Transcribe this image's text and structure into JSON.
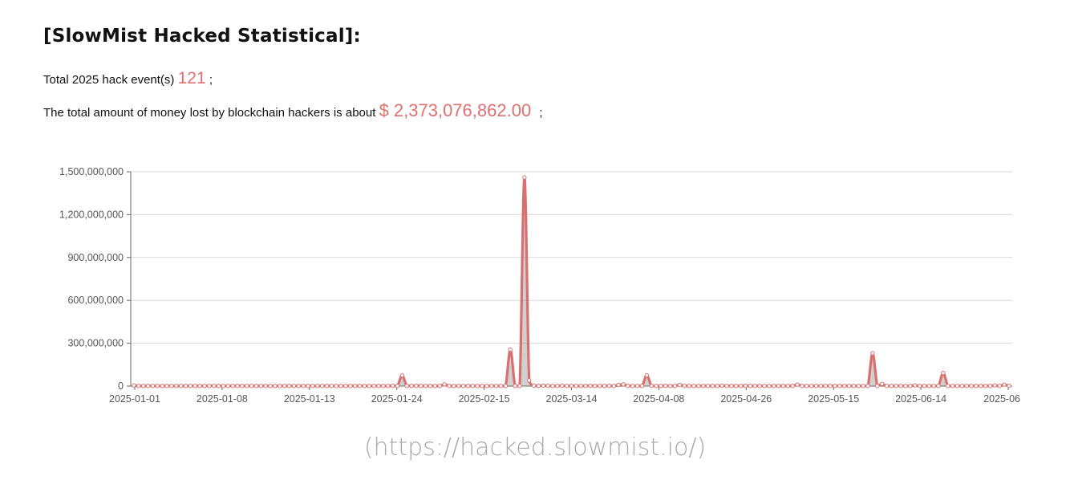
{
  "header": {
    "title": "[SlowMist Hacked Statistical]:",
    "events_prefix": "Total 2025 hack event(s)",
    "events_count": "121",
    "events_suffix": ";",
    "loss_prefix": "The total amount of money lost by blockchain hackers is about",
    "loss_amount": "$ 2,373,076,862.00",
    "loss_suffix": ";"
  },
  "source": "(https://hacked.slowmist.io/)",
  "colors": {
    "accent": "#e07070",
    "line": "#d9706f",
    "grid": "#d9d9d9",
    "text": "#555555"
  },
  "chart_data": {
    "type": "line",
    "title": "",
    "xlabel": "",
    "ylabel": "",
    "ylim": [
      0,
      1500000000
    ],
    "y_ticks": [
      "0",
      "300,000,000",
      "600,000,000",
      "900,000,000",
      "1,200,000,000",
      "1,500,000,000"
    ],
    "x_tick_labels": [
      "2025-01-01",
      "2025-01-08",
      "2025-01-13",
      "2025-01-24",
      "2025-02-15",
      "2025-03-14",
      "2025-04-08",
      "2025-04-26",
      "2025-05-15",
      "2025-06-14",
      "2025-06"
    ],
    "grid": true,
    "legend": "none",
    "values": [
      5000000,
      1000000,
      1000000,
      1000000,
      1000000,
      1000000,
      1000000,
      1000000,
      1000000,
      1000000,
      1000000,
      1000000,
      1000000,
      1000000,
      1000000,
      1000000,
      1000000,
      1000000,
      1000000,
      1000000,
      1000000,
      1000000,
      1000000,
      1000000,
      1000000,
      1000000,
      1000000,
      1000000,
      1000000,
      1000000,
      1000000,
      1000000,
      1000000,
      1000000,
      1000000,
      1000000,
      1000000,
      1000000,
      1000000,
      1000000,
      1000000,
      1000000,
      1000000,
      1000000,
      1000000,
      1000000,
      1000000,
      1000000,
      1000000,
      1000000,
      1000000,
      1000000,
      1000000,
      1000000,
      1000000,
      2000000,
      1000000,
      75000000,
      1000000,
      1000000,
      2000000,
      1000000,
      1000000,
      1000000,
      1000000,
      1000000,
      12000000,
      1000000,
      1000000,
      1000000,
      1000000,
      1000000,
      1000000,
      1000000,
      1000000,
      1000000,
      1000000,
      1000000,
      1000000,
      1000000,
      255000000,
      1000000,
      1000000,
      1460000000,
      40000000,
      3000000,
      2000000,
      3000000,
      2000000,
      1000000,
      1000000,
      3000000,
      1000000,
      2000000,
      1000000,
      1000000,
      1000000,
      2000000,
      1000000,
      1000000,
      1000000,
      2000000,
      1000000,
      8000000,
      12000000,
      2000000,
      1000000,
      1000000,
      1000000,
      75000000,
      2000000,
      1000000,
      1000000,
      2000000,
      1000000,
      1000000,
      8000000,
      1000000,
      1000000,
      1000000,
      1000000,
      1000000,
      1000000,
      1000000,
      1000000,
      3000000,
      1000000,
      1000000,
      1000000,
      1000000,
      2000000,
      1000000,
      1000000,
      1000000,
      1000000,
      1000000,
      1000000,
      1000000,
      1000000,
      1000000,
      1000000,
      10000000,
      1000000,
      1000000,
      1000000,
      1000000,
      1000000,
      1000000,
      1000000,
      1000000,
      1000000,
      1000000,
      1000000,
      1000000,
      1000000,
      1000000,
      1000000,
      230000000,
      1000000,
      15000000,
      1000000,
      1000000,
      1000000,
      1000000,
      1000000,
      1000000,
      5000000,
      1000000,
      1000000,
      1000000,
      1000000,
      1000000,
      92000000,
      1000000,
      1000000,
      1000000,
      1000000,
      1000000,
      1000000,
      1000000,
      1000000,
      1000000,
      1000000,
      5000000,
      1000000,
      10000000,
      2000000
    ]
  }
}
